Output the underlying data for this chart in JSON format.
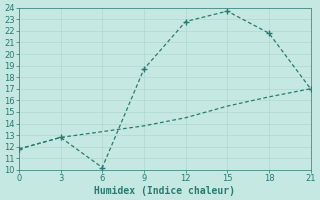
{
  "xlabel": "Humidex (Indice chaleur)",
  "line1_x": [
    0,
    3,
    6,
    9,
    12,
    15,
    18,
    21
  ],
  "line1_y": [
    11.8,
    12.8,
    10.2,
    18.7,
    22.8,
    23.7,
    21.8,
    17.0
  ],
  "line2_x": [
    0,
    3,
    6,
    9,
    12,
    15,
    18,
    21
  ],
  "line2_y": [
    11.8,
    12.8,
    13.3,
    13.8,
    14.5,
    15.5,
    16.3,
    17.0
  ],
  "color": "#2a7a72",
  "bg_color": "#c5e8e2",
  "grid_major_color": "#b0d8d0",
  "grid_minor_color": "#c0e0d8",
  "xlim": [
    0,
    21
  ],
  "ylim": [
    10,
    24
  ],
  "xticks": [
    0,
    3,
    6,
    9,
    12,
    15,
    18,
    21
  ],
  "yticks": [
    10,
    11,
    12,
    13,
    14,
    15,
    16,
    17,
    18,
    19,
    20,
    21,
    22,
    23,
    24
  ],
  "tick_fontsize": 6,
  "xlabel_fontsize": 7
}
